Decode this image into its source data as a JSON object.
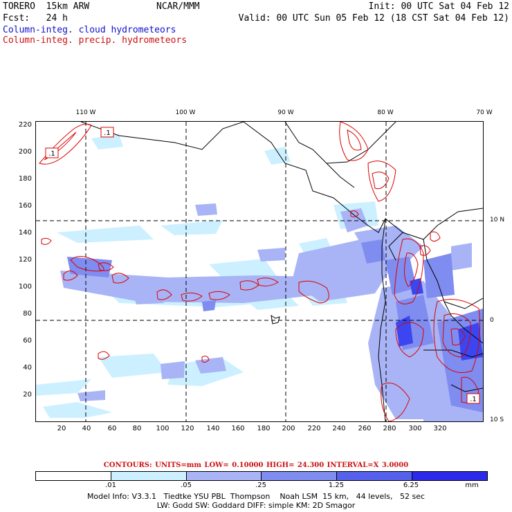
{
  "header": {
    "run": "TORERO  15km ARW",
    "org": "NCAR/MMM",
    "init": "Init: 00 UTC Sat 04 Feb 12",
    "fcst": "Fcst:   24 h",
    "valid": "Valid: 00 UTC Sun 05 Feb 12 (18 CST Sat 04 Feb 12)",
    "line1": "Column-integ. cloud hydrometeors",
    "line2": "Column-integ. precip. hydrometeors"
  },
  "colors": {
    "cloud_label": "#1010cc",
    "precip_label": "#cc1010",
    "contour": "#dd0000",
    "shade_1": "#ccf0ff",
    "shade_2": "#a8b4f6",
    "shade_3": "#7f8cf0",
    "shade_4": "#5560ec",
    "shade_5": "#3c46f0",
    "shade_6": "#2a2ae8"
  },
  "map": {
    "y_ticks": [
      "220",
      "200",
      "180",
      "160",
      "140",
      "120",
      "100",
      "80",
      "60",
      "40",
      "20"
    ],
    "x_ticks": [
      "20",
      "40",
      "60",
      "80",
      "100",
      "120",
      "140",
      "160",
      "180",
      "200",
      "220",
      "240",
      "260",
      "280",
      "300",
      "320"
    ],
    "lon_labels": [
      "110 W",
      "100 W",
      "90 W",
      "80 W",
      "70 W"
    ],
    "lat_labels": [
      "10 N",
      "0",
      "10 S"
    ],
    "contour_label": ".1"
  },
  "contours_line": "CONTOURS:  UNITS=mm  LOW= 0.10000       HIGH=   24.300       INTERVAL=X  3.0000",
  "colorbar": {
    "labels": [
      ".01",
      ".05",
      ".25",
      "1.25",
      "6.25"
    ],
    "unit": "mm"
  },
  "footer": {
    "line1": "Model Info: V3.3.1   Tiedtke YSU PBL  Thompson    Noah LSM  15 km,   44 levels,   52 sec",
    "line2": "LW: Godd SW: Goddard DIFF: simple KM: 2D Smagor"
  }
}
